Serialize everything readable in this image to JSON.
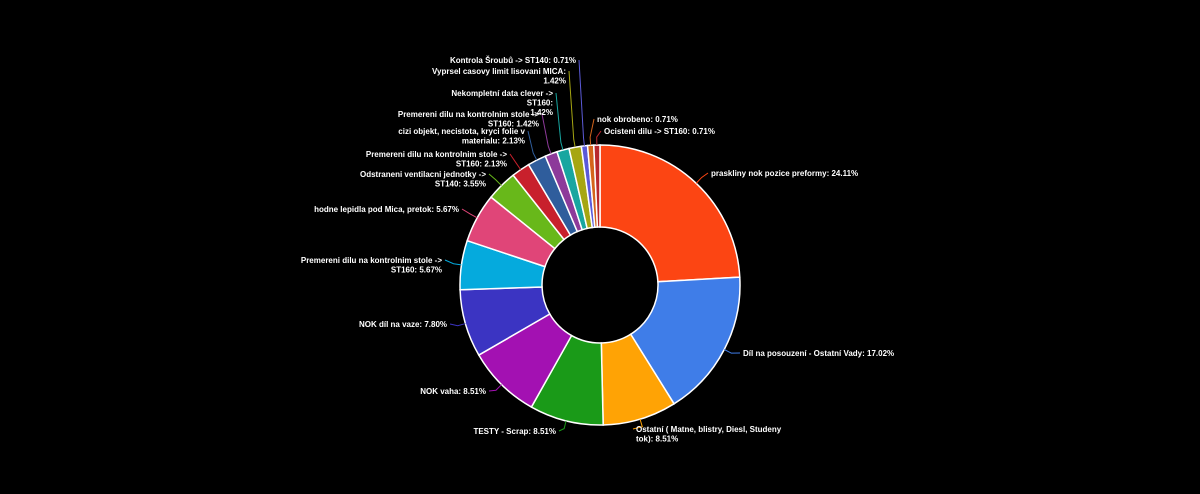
{
  "chart_data": {
    "type": "pie",
    "donut": true,
    "legend": "none",
    "slices": [
      {
        "label": "praskliny nok pozice preformy",
        "value": 24.11,
        "display": "praskliny nok pozice preformy: 24.11%",
        "color": "#fc4513"
      },
      {
        "label": "Díl na posouzení - Ostatní Vady",
        "value": 17.02,
        "display": "Díl na posouzení - Ostatní Vady: 17.02%",
        "color": "#3f7de8"
      },
      {
        "label": "Ostatní ( Matne, blistry, Diesl, Studeny tok)",
        "value": 8.51,
        "display": "Ostatní ( Matne, blistry, Diesl, Studeny tok): 8.51%",
        "color": "#ffa305"
      },
      {
        "label": "TESTY - Scrap",
        "value": 8.51,
        "display": "TESTY - Scrap: 8.51%",
        "color": "#1a9a18"
      },
      {
        "label": "NOK vaha",
        "value": 8.51,
        "display": "NOK vaha: 8.51%",
        "color": "#a311b2"
      },
      {
        "label": "NOK díl na vaze",
        "value": 7.8,
        "display": "NOK díl na vaze: 7.80%",
        "color": "#3b34c2"
      },
      {
        "label": "Premereni dilu na kontrolnim stole -> ST160",
        "value": 5.67,
        "display": "Premereni dilu na kontrolnim stole -> ST160: 5.67%",
        "color": "#05aadd"
      },
      {
        "label": "hodne lepidla pod Mica, pretok",
        "value": 5.67,
        "display": "hodne lepidla pod Mica, pretok: 5.67%",
        "color": "#e04578"
      },
      {
        "label": "Odstraneni ventilacni jednotky -> ST140",
        "value": 3.55,
        "display": "Odstraneni ventilacni jednotky -> ST140: 3.55%",
        "color": "#68b81a"
      },
      {
        "label": "Premereni dilu na kontrolnim stole -> ST160",
        "value": 2.13,
        "display": "Premereni dilu na kontrolnim stole -> ST160: 2.13%",
        "color": "#c8202c"
      },
      {
        "label": "cizi objekt, necistota, kryci folie v materialu",
        "value": 2.13,
        "display": "cizi objekt, necistota, kryci folie v materialu: 2.13%",
        "color": "#2f5d9c"
      },
      {
        "label": "Premereni dilu na kontrolnim stole -> ST160",
        "value": 1.42,
        "display": "Premereni dilu na kontrolnim stole -> ST160: 1.42%",
        "color": "#8d3a9a"
      },
      {
        "label": "Nekompletní data clever -> ST160",
        "value": 1.42,
        "display": "Nekompletní data clever -> ST160: 1.42%",
        "color": "#18a6a0"
      },
      {
        "label": "Vyprsel casovy limit lisovani MICA",
        "value": 1.42,
        "display": "Vyprsel casovy limit lisovani MICA: 1.42%",
        "color": "#a6a612"
      },
      {
        "label": "Kontrola Šroubů -> ST140",
        "value": 0.71,
        "display": "Kontrola Šroubů -> ST140: 0.71%",
        "color": "#5b5ad8"
      },
      {
        "label": "nok obrobeno",
        "value": 0.71,
        "display": "nok obrobeno: 0.71%",
        "color": "#d4651c"
      },
      {
        "label": "Ocisteni dilu -> ST160",
        "value": 0.71,
        "display": "Ocisteni dilu -> ST160: 0.71%",
        "color": "#b8282e"
      }
    ]
  }
}
